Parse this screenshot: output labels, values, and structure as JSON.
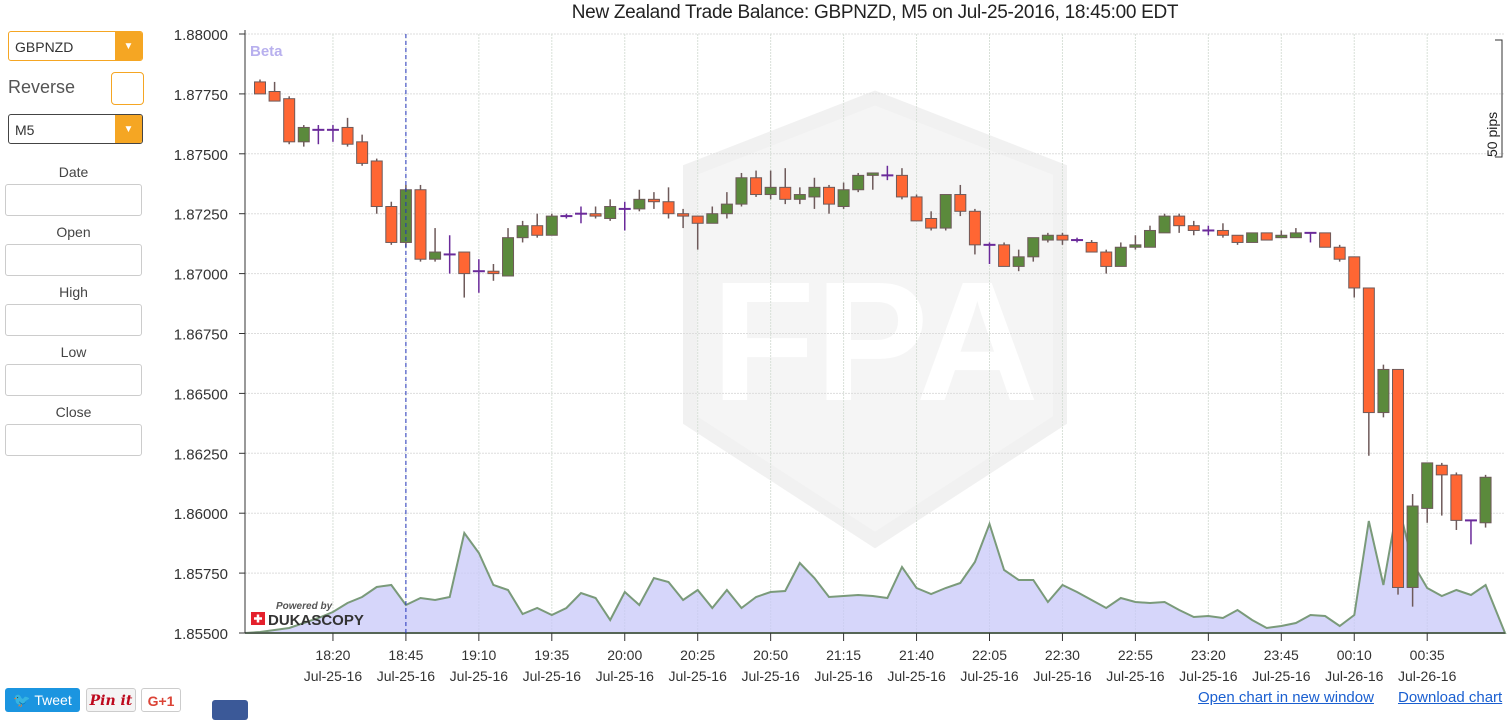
{
  "title": "New Zealand Trade Balance: GBPNZD, M5 on Jul-25-2016, 18:45:00 EDT",
  "controls": {
    "pair": "GBPNZD",
    "reverse_label": "Reverse",
    "timeframe": "M5",
    "fields": [
      "Date",
      "Open",
      "High",
      "Low",
      "Close"
    ]
  },
  "chart": {
    "beta": "Beta",
    "pips_label": "50 pips",
    "powered_by": "Powered by",
    "brand": "DUKASCOPY",
    "watermark": "FPA"
  },
  "share": {
    "tweet": "Tweet",
    "pin": "Pin it",
    "gplus": "G+1"
  },
  "links": {
    "open": "Open chart in new window",
    "download": "Download chart"
  },
  "colors": {
    "up": "#5b8a3c",
    "down": "#ff6633",
    "doji": "#6a2a9a",
    "accent": "#f5a623",
    "event_line": "#2233bb",
    "volume_fill": "#c8c8f8"
  },
  "chart_data": {
    "type": "candlestick",
    "title": "New Zealand Trade Balance: GBPNZD, M5 on Jul-25-2016, 18:45:00 EDT",
    "ylim": [
      1.855,
      1.88
    ],
    "y_ticks": [
      "1.88000",
      "1.87750",
      "1.87500",
      "1.87250",
      "1.87000",
      "1.86750",
      "1.86500",
      "1.86250",
      "1.86000",
      "1.85750",
      "1.85500"
    ],
    "x_ticks": [
      {
        "time": "18:20",
        "date": "Jul-25-16"
      },
      {
        "time": "18:45",
        "date": "Jul-25-16"
      },
      {
        "time": "19:10",
        "date": "Jul-25-16"
      },
      {
        "time": "19:35",
        "date": "Jul-25-16"
      },
      {
        "time": "20:00",
        "date": "Jul-25-16"
      },
      {
        "time": "20:25",
        "date": "Jul-25-16"
      },
      {
        "time": "20:50",
        "date": "Jul-25-16"
      },
      {
        "time": "21:15",
        "date": "Jul-25-16"
      },
      {
        "time": "21:40",
        "date": "Jul-25-16"
      },
      {
        "time": "22:05",
        "date": "Jul-25-16"
      },
      {
        "time": "22:30",
        "date": "Jul-25-16"
      },
      {
        "time": "22:55",
        "date": "Jul-25-16"
      },
      {
        "time": "23:20",
        "date": "Jul-25-16"
      },
      {
        "time": "23:45",
        "date": "Jul-25-16"
      },
      {
        "time": "00:10",
        "date": "Jul-26-16"
      },
      {
        "time": "00:35",
        "date": "Jul-26-16"
      }
    ],
    "event_time": "18:45",
    "grid": true,
    "times": [
      "17:55",
      "18:00",
      "18:05",
      "18:10",
      "18:15",
      "18:20",
      "18:25",
      "18:30",
      "18:35",
      "18:40",
      "18:45",
      "18:50",
      "18:55",
      "19:00",
      "19:05",
      "19:10",
      "19:15",
      "19:20",
      "19:25",
      "19:30",
      "19:35",
      "19:40",
      "19:45",
      "19:50",
      "19:55",
      "20:00",
      "20:05",
      "20:10",
      "20:15",
      "20:20",
      "20:25",
      "20:30",
      "20:35",
      "20:40",
      "20:45",
      "20:50",
      "20:55",
      "21:00",
      "21:05",
      "21:10",
      "21:15",
      "21:20",
      "21:25",
      "21:30",
      "21:35",
      "21:40",
      "21:45",
      "21:50",
      "21:55",
      "22:00",
      "22:05",
      "22:10",
      "22:15",
      "22:20",
      "22:25",
      "22:30",
      "22:35",
      "22:40",
      "22:45",
      "22:50",
      "22:55",
      "23:00",
      "23:05",
      "23:10",
      "23:15",
      "23:20",
      "23:25",
      "23:30",
      "23:35",
      "23:40",
      "23:45",
      "23:50",
      "23:55",
      "00:00",
      "00:05",
      "00:10",
      "00:15",
      "00:20",
      "00:25",
      "00:30",
      "00:35",
      "00:40",
      "00:45",
      "00:50",
      "00:55"
    ],
    "ohlc_fields": [
      "open",
      "high",
      "low",
      "close"
    ],
    "ohlc": [
      [
        1.878,
        1.8781,
        1.8775,
        1.8775
      ],
      [
        1.8776,
        1.878,
        1.8772,
        1.8772
      ],
      [
        1.8773,
        1.8774,
        1.8754,
        1.8755
      ],
      [
        1.8755,
        1.8762,
        1.8753,
        1.8761
      ],
      [
        1.876,
        1.8762,
        1.8754,
        1.876
      ],
      [
        1.876,
        1.8762,
        1.8755,
        1.876
      ],
      [
        1.8761,
        1.8765,
        1.8753,
        1.8754
      ],
      [
        1.8755,
        1.8758,
        1.8745,
        1.8746
      ],
      [
        1.8747,
        1.8748,
        1.8725,
        1.8728
      ],
      [
        1.8728,
        1.873,
        1.8712,
        1.8713
      ],
      [
        1.8713,
        1.8737,
        1.8711,
        1.8735
      ],
      [
        1.8735,
        1.8737,
        1.8705,
        1.8706
      ],
      [
        1.8706,
        1.8719,
        1.8705,
        1.8709
      ],
      [
        1.8708,
        1.8716,
        1.87,
        1.8708
      ],
      [
        1.8709,
        1.8709,
        1.869,
        1.87
      ],
      [
        1.8701,
        1.8706,
        1.8692,
        1.8701
      ],
      [
        1.8701,
        1.8704,
        1.8697,
        1.87
      ],
      [
        1.8699,
        1.8719,
        1.8699,
        1.8715
      ],
      [
        1.8715,
        1.8722,
        1.8713,
        1.872
      ],
      [
        1.872,
        1.8725,
        1.8715,
        1.8716
      ],
      [
        1.8716,
        1.8725,
        1.8716,
        1.8724
      ],
      [
        1.8724,
        1.8725,
        1.8723,
        1.8724
      ],
      [
        1.8725,
        1.8728,
        1.8721,
        1.8725
      ],
      [
        1.8725,
        1.8728,
        1.8723,
        1.8724
      ],
      [
        1.8723,
        1.8731,
        1.8722,
        1.8728
      ],
      [
        1.8727,
        1.873,
        1.8718,
        1.8727
      ],
      [
        1.8727,
        1.8735,
        1.8726,
        1.8731
      ],
      [
        1.8731,
        1.8734,
        1.8727,
        1.873
      ],
      [
        1.873,
        1.8736,
        1.8723,
        1.8725
      ],
      [
        1.8725,
        1.8727,
        1.8719,
        1.8724
      ],
      [
        1.8724,
        1.8724,
        1.871,
        1.8721
      ],
      [
        1.8721,
        1.8728,
        1.8721,
        1.8725
      ],
      [
        1.8725,
        1.8734,
        1.8723,
        1.8729
      ],
      [
        1.8729,
        1.8742,
        1.8728,
        1.874
      ],
      [
        1.874,
        1.8743,
        1.8732,
        1.8733
      ],
      [
        1.8733,
        1.8743,
        1.8731,
        1.8736
      ],
      [
        1.8736,
        1.8744,
        1.8729,
        1.8731
      ],
      [
        1.8731,
        1.8736,
        1.8729,
        1.8733
      ],
      [
        1.8732,
        1.874,
        1.8727,
        1.8736
      ],
      [
        1.8736,
        1.8737,
        1.8725,
        1.8729
      ],
      [
        1.8728,
        1.8738,
        1.8727,
        1.8735
      ],
      [
        1.8735,
        1.8742,
        1.8734,
        1.8741
      ],
      [
        1.8741,
        1.8742,
        1.8735,
        1.8742
      ],
      [
        1.8741,
        1.8745,
        1.8739,
        1.8741
      ],
      [
        1.8741,
        1.8744,
        1.8731,
        1.8732
      ],
      [
        1.8732,
        1.8733,
        1.8722,
        1.8722
      ],
      [
        1.8723,
        1.8726,
        1.8718,
        1.8719
      ],
      [
        1.8719,
        1.8733,
        1.8718,
        1.8733
      ],
      [
        1.8733,
        1.8737,
        1.8724,
        1.8726
      ],
      [
        1.8726,
        1.8727,
        1.8708,
        1.8712
      ],
      [
        1.8712,
        1.8713,
        1.8704,
        1.8712
      ],
      [
        1.8712,
        1.8713,
        1.8703,
        1.8703
      ],
      [
        1.8703,
        1.871,
        1.8701,
        1.8707
      ],
      [
        1.8707,
        1.8715,
        1.8705,
        1.8715
      ],
      [
        1.8714,
        1.8717,
        1.8713,
        1.8716
      ],
      [
        1.8716,
        1.8717,
        1.8712,
        1.8714
      ],
      [
        1.8714,
        1.8715,
        1.8713,
        1.8714
      ],
      [
        1.8713,
        1.8714,
        1.8709,
        1.8709
      ],
      [
        1.8709,
        1.871,
        1.87,
        1.8703
      ],
      [
        1.8703,
        1.8713,
        1.8703,
        1.8711
      ],
      [
        1.8711,
        1.8716,
        1.871,
        1.8712
      ],
      [
        1.8711,
        1.872,
        1.8711,
        1.8718
      ],
      [
        1.8717,
        1.8725,
        1.8717,
        1.8724
      ],
      [
        1.8724,
        1.8725,
        1.8717,
        1.872
      ],
      [
        1.872,
        1.8722,
        1.8716,
        1.8718
      ],
      [
        1.8718,
        1.872,
        1.8716,
        1.8718
      ],
      [
        1.8718,
        1.8721,
        1.8715,
        1.8716
      ],
      [
        1.8716,
        1.8716,
        1.8712,
        1.8713
      ],
      [
        1.8713,
        1.8717,
        1.8713,
        1.8717
      ],
      [
        1.8717,
        1.8717,
        1.8714,
        1.8714
      ],
      [
        1.8715,
        1.8718,
        1.8715,
        1.8716
      ],
      [
        1.8715,
        1.8719,
        1.8715,
        1.8717
      ],
      [
        1.8717,
        1.8717,
        1.8713,
        1.8717
      ],
      [
        1.8717,
        1.8717,
        1.8711,
        1.8711
      ],
      [
        1.8711,
        1.8712,
        1.8705,
        1.8706
      ],
      [
        1.8707,
        1.8707,
        1.869,
        1.8694
      ],
      [
        1.8694,
        1.8694,
        1.8624,
        1.8642
      ],
      [
        1.8642,
        1.8662,
        1.864,
        1.866
      ],
      [
        1.866,
        1.866,
        1.8566,
        1.8569
      ],
      [
        1.8569,
        1.8608,
        1.8561,
        1.8603
      ],
      [
        1.8602,
        1.8621,
        1.8596,
        1.8621
      ],
      [
        1.862,
        1.8621,
        1.8599,
        1.8616
      ],
      [
        1.8616,
        1.8617,
        1.8593,
        1.8597
      ],
      [
        1.8597,
        1.8597,
        1.8587,
        1.8597
      ],
      [
        1.8596,
        1.8616,
        1.8594,
        1.8615
      ]
    ],
    "volume_relative": [
      1,
      3,
      5,
      10,
      15,
      21,
      30,
      36,
      46,
      48,
      28,
      35,
      33,
      36,
      100,
      80,
      48,
      43,
      19,
      25,
      18,
      25,
      40,
      35,
      13,
      41,
      28,
      55,
      51,
      33,
      43,
      25,
      43,
      25,
      36,
      41,
      42,
      70,
      55,
      36,
      37,
      38,
      37,
      35,
      66,
      45,
      39,
      45,
      50,
      71,
      109,
      63,
      53,
      53,
      31,
      48,
      41,
      33,
      25,
      35,
      31,
      30,
      31,
      23,
      16,
      17,
      15,
      23,
      13,
      5,
      7,
      10,
      18,
      17,
      7,
      18,
      112,
      48,
      130,
      70,
      45,
      37,
      43,
      38,
      48
    ]
  }
}
